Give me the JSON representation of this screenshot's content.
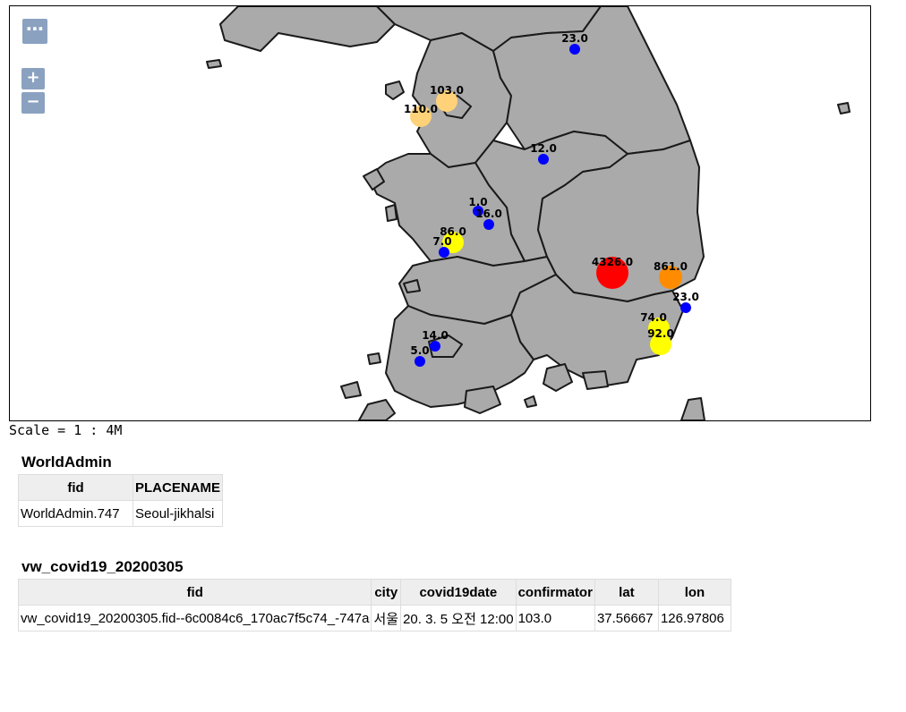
{
  "controls": {
    "layer_switcher": "⋯",
    "zoom_in": "+",
    "zoom_out": "−"
  },
  "scale_text": "Scale = 1 : 4M",
  "map_points": [
    {
      "label": "23.0",
      "value": 23,
      "color": "#0000ff"
    },
    {
      "label": "103.0",
      "value": 103,
      "color": "#ffd27a"
    },
    {
      "label": "110.0",
      "value": 110,
      "color": "#ffd27a"
    },
    {
      "label": "12.0",
      "value": 12,
      "color": "#0000ff"
    },
    {
      "label": "1.0",
      "value": 1,
      "color": "#0000ff"
    },
    {
      "label": "16.0",
      "value": 16,
      "color": "#0000ff"
    },
    {
      "label": "86.0",
      "value": 86,
      "color": "#ffff00"
    },
    {
      "label": "7.0",
      "value": 7,
      "color": "#0000ff"
    },
    {
      "label": "4326.0",
      "value": 4326,
      "color": "#ff0000"
    },
    {
      "label": "861.0",
      "value": 861,
      "color": "#ff8c00"
    },
    {
      "label": "23.0",
      "value": 23,
      "color": "#0000ff"
    },
    {
      "label": "74.0",
      "value": 74,
      "color": "#ffff00"
    },
    {
      "label": "92.0",
      "value": 92,
      "color": "#ffff00"
    },
    {
      "label": "14.0",
      "value": 14,
      "color": "#0000ff"
    },
    {
      "label": "5.0",
      "value": 5,
      "color": "#0000ff"
    }
  ],
  "world_admin": {
    "title": "WorldAdmin",
    "headers": [
      "fid",
      "PLACENAME"
    ],
    "rows": [
      [
        "WorldAdmin.747",
        "Seoul-jikhalsi"
      ]
    ]
  },
  "covid": {
    "title": "vw_covid19_20200305",
    "headers": [
      "fid",
      "city",
      "covid19date",
      "confirmator",
      "lat",
      "lon"
    ],
    "rows": [
      [
        "vw_covid19_20200305.fid--6c0084c6_170ac7f5c74_-747a",
        "서울",
        "20. 3. 5 오전 12:00",
        "103.0",
        "37.56667",
        "126.97806"
      ]
    ]
  }
}
